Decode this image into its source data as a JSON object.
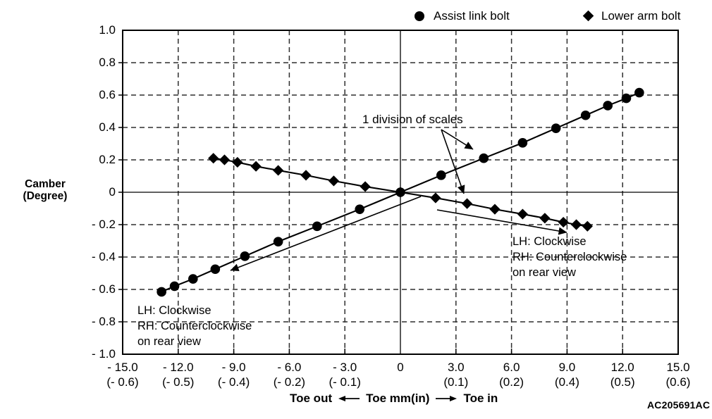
{
  "figure_code": "AC205691AC",
  "y_axis": {
    "title_line1": "Camber",
    "title_line2": "(Degree)",
    "ticks": [
      "1.0",
      "0.8",
      "0.6",
      "0.4",
      "0.2",
      "0",
      "- 0.2",
      "- 0.4",
      "- 0.6",
      "- 0.8",
      "- 1.0"
    ]
  },
  "x_axis": {
    "label_out": "Toe out",
    "label_center": "Toe mm(in)",
    "label_in": "Toe in",
    "ticks": [
      {
        "mm": "- 15.0",
        "in": "(- 0.6)"
      },
      {
        "mm": "- 12.0",
        "in": "(- 0.5)"
      },
      {
        "mm": "- 9.0",
        "in": "(- 0.4)"
      },
      {
        "mm": "- 6.0",
        "in": "(- 0.2)"
      },
      {
        "mm": "- 3.0",
        "in": "(- 0.1)"
      },
      {
        "mm": "0",
        "in": ""
      },
      {
        "mm": "3.0",
        "in": "(0.1)"
      },
      {
        "mm": "6.0",
        "in": "(0.2)"
      },
      {
        "mm": "9.0",
        "in": "(0.4)"
      },
      {
        "mm": "12.0",
        "in": "(0.5)"
      },
      {
        "mm": "15.0",
        "in": "(0.6)"
      }
    ]
  },
  "annotations": {
    "division_label": "1 division of scales",
    "left_note": [
      "LH: Clockwise",
      "RH: Counterclockwise",
      "on rear view"
    ],
    "right_note": [
      "LH: Clockwise",
      "RH: Counterclockwise",
      "on rear view"
    ]
  },
  "chart_data": {
    "type": "line",
    "title": "",
    "xlabel": "Toe mm(in)",
    "ylabel": "Camber (Degree)",
    "xlim": [
      -15,
      15
    ],
    "ylim": [
      -1.0,
      1.0
    ],
    "x_tick_step_mm": 3.0,
    "y_tick_step": 0.2,
    "grid": "dashed at every labeled tick, solid axis lines at x=0 and y=0",
    "legend_position": "top",
    "series": [
      {
        "name": "Assist link bolt",
        "marker": "circle",
        "x": [
          -12.9,
          -12.2,
          -11.2,
          -10.0,
          -8.4,
          -6.6,
          -4.5,
          -2.2,
          0,
          2.2,
          4.5,
          6.6,
          8.4,
          10.0,
          11.2,
          12.2,
          12.9
        ],
        "y": [
          -0.615,
          -0.58,
          -0.535,
          -0.475,
          -0.395,
          -0.305,
          -0.21,
          -0.105,
          0,
          0.105,
          0.21,
          0.305,
          0.395,
          0.475,
          0.535,
          0.58,
          0.615
        ]
      },
      {
        "name": "Lower arm bolt",
        "marker": "diamond",
        "x": [
          -10.1,
          -9.5,
          -8.8,
          -7.8,
          -6.6,
          -5.1,
          -3.6,
          -1.9,
          0,
          1.9,
          3.6,
          5.1,
          6.6,
          7.8,
          8.8,
          9.5,
          10.1
        ],
        "y": [
          0.21,
          0.2,
          0.185,
          0.16,
          0.135,
          0.105,
          0.07,
          0.035,
          0,
          -0.035,
          -0.07,
          -0.105,
          -0.135,
          -0.16,
          -0.185,
          -0.2,
          -0.21
        ]
      }
    ]
  }
}
